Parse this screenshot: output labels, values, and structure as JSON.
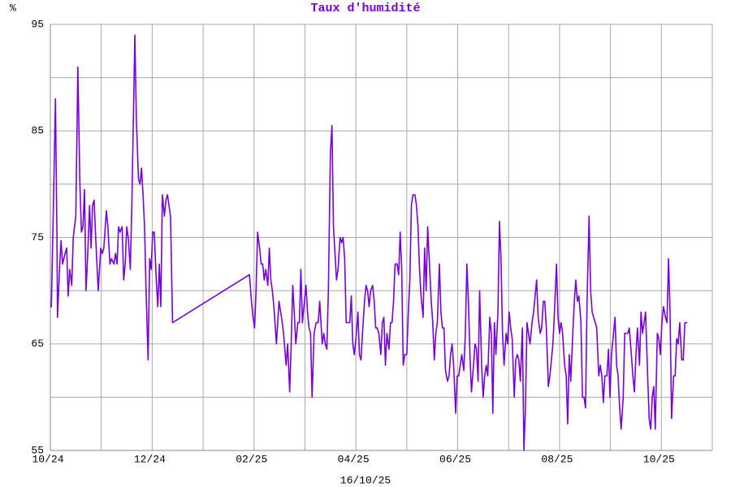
{
  "chart_data": {
    "type": "line",
    "title": "Taux d'humidité",
    "ylabel": "%",
    "xlabel": "16/10/25",
    "color": "#7b00e0",
    "grid": true,
    "xlim": [
      0,
      13
    ],
    "ylim": [
      55,
      95
    ],
    "xticks": [
      {
        "value": 0,
        "label": "10/24"
      },
      {
        "value": 2,
        "label": "12/24"
      },
      {
        "value": 4,
        "label": "02/25"
      },
      {
        "value": 6,
        "label": "04/25"
      },
      {
        "value": 8,
        "label": "06/25"
      },
      {
        "value": 10,
        "label": "08/25"
      },
      {
        "value": 12,
        "label": "10/25"
      }
    ],
    "xminor": [
      1,
      3,
      5,
      7,
      9,
      11,
      13
    ],
    "yticks": [
      55,
      65,
      75,
      85,
      95
    ],
    "yminor": [
      60,
      70,
      80,
      90
    ],
    "x": [
      0,
      0.02,
      0.06,
      0.1,
      0.13,
      0.14,
      0.18,
      0.21,
      0.24,
      0.29,
      0.32,
      0.35,
      0.38,
      0.42,
      0.45,
      0.5,
      0.54,
      0.58,
      0.61,
      0.64,
      0.67,
      0.7,
      0.73,
      0.77,
      0.8,
      0.83,
      0.86,
      0.89,
      0.94,
      0.99,
      1.02,
      1.05,
      1.1,
      1.13,
      1.17,
      1.2,
      1.25,
      1.28,
      1.31,
      1.34,
      1.37,
      1.41,
      1.44,
      1.47,
      1.5,
      1.53,
      1.57,
      1.6,
      1.66,
      1.69,
      1.73,
      1.76,
      1.79,
      1.82,
      1.85,
      1.88,
      1.92,
      1.95,
      1.98,
      2.01,
      2.04,
      2.08,
      2.11,
      2.14,
      2.17,
      2.2,
      2.24,
      2.27,
      2.3,
      2.33,
      2.36,
      2.4,
      3.91,
      3.95,
      3.98,
      4.01,
      4.04,
      4.07,
      4.11,
      4.14,
      4.17,
      4.2,
      4.23,
      4.27,
      4.3,
      4.33,
      4.36,
      4.39,
      4.44,
      4.49,
      4.54,
      4.58,
      4.63,
      4.66,
      4.7,
      4.73,
      4.76,
      4.79,
      4.82,
      4.86,
      4.89,
      4.92,
      4.95,
      4.98,
      5.02,
      5.05,
      5.08,
      5.11,
      5.14,
      5.18,
      5.22,
      5.26,
      5.29,
      5.34,
      5.37,
      5.4,
      5.43,
      5.46,
      5.5,
      5.53,
      5.56,
      5.59,
      5.62,
      5.65,
      5.69,
      5.72,
      5.75,
      5.78,
      5.81,
      5.85,
      5.88,
      5.91,
      5.94,
      5.97,
      6.01,
      6.04,
      6.07,
      6.1,
      6.13,
      6.17,
      6.2,
      6.23,
      6.26,
      6.29,
      6.33,
      6.36,
      6.39,
      6.42,
      6.45,
      6.49,
      6.52,
      6.55,
      6.58,
      6.61,
      6.65,
      6.68,
      6.71,
      6.74,
      6.77,
      6.81,
      6.84,
      6.87,
      6.9,
      6.93,
      6.96,
      7.0,
      7.03,
      7.06,
      7.09,
      7.12,
      7.16,
      7.19,
      7.22,
      7.25,
      7.28,
      7.32,
      7.35,
      7.38,
      7.41,
      7.44,
      7.48,
      7.51,
      7.54,
      7.57,
      7.6,
      7.64,
      7.67,
      7.7,
      7.73,
      7.76,
      7.8,
      7.83,
      7.86,
      7.89,
      7.92,
      7.96,
      7.99,
      8.02,
      8.05,
      8.08,
      8.12,
      8.15,
      8.18,
      8.21,
      8.24,
      8.27,
      8.31,
      8.34,
      8.37,
      8.4,
      8.43,
      8.47,
      8.5,
      8.53,
      8.56,
      8.59,
      8.63,
      8.66,
      8.69,
      8.72,
      8.75,
      8.79,
      8.82,
      8.85,
      8.88,
      8.91,
      8.95,
      8.98,
      9.01,
      9.04,
      9.07,
      9.11,
      9.14,
      9.17,
      9.2,
      9.23,
      9.27,
      9.3,
      9.33,
      9.36,
      9.39,
      9.42,
      9.46,
      9.49,
      9.52,
      9.55,
      9.58,
      9.62,
      9.65,
      9.68,
      9.71,
      9.74,
      9.78,
      9.81,
      9.84,
      9.87,
      9.9,
      9.94,
      9.97,
      10.0,
      10.03,
      10.06,
      10.1,
      10.13,
      10.16,
      10.19,
      10.22,
      10.26,
      10.29,
      10.32,
      10.35,
      10.38,
      10.42,
      10.45,
      10.48,
      10.51,
      10.54,
      10.58,
      10.61,
      10.64,
      10.67,
      10.7,
      10.73,
      10.77,
      10.8,
      10.83,
      10.86,
      10.89,
      10.93,
      10.96,
      10.99,
      11.02,
      11.05,
      11.09,
      11.12,
      11.15,
      11.18,
      11.21,
      11.25,
      11.28,
      11.31,
      11.34,
      11.37,
      11.41,
      11.44,
      11.47,
      11.5,
      11.53,
      11.57,
      11.6,
      11.63,
      11.66,
      11.69,
      11.73,
      11.76,
      11.79,
      11.82,
      11.85,
      11.88,
      11.92,
      11.95,
      11.98,
      12.01,
      12.04,
      12.08,
      12.11,
      12.14,
      12.17,
      12.2,
      12.24,
      12.27,
      12.3,
      12.33,
      12.36,
      12.4,
      12.43,
      12.46,
      12.51
    ],
    "values": [
      68.5,
      68.5,
      78,
      88,
      75,
      67.5,
      72,
      74.7,
      72.5,
      73.5,
      74,
      69.5,
      72,
      70.5,
      75,
      77,
      91,
      80,
      75.5,
      76,
      79.5,
      70,
      73,
      78,
      74,
      78,
      78.5,
      75,
      70,
      74,
      73.5,
      74,
      77.5,
      76,
      72.5,
      73,
      72.5,
      73.5,
      72.5,
      76,
      75.5,
      76,
      71,
      72.5,
      76,
      75,
      72,
      78,
      94,
      86,
      80.5,
      80,
      81.5,
      79,
      76,
      70,
      63.5,
      73,
      72,
      75.5,
      75.5,
      71,
      68.5,
      72.5,
      68.5,
      79,
      77,
      78.5,
      79,
      78,
      77,
      67,
      71.5,
      69,
      67.5,
      66.5,
      70,
      75.5,
      74,
      72.5,
      72.5,
      71,
      72,
      70.5,
      74,
      71,
      70,
      68.5,
      65,
      69,
      67.5,
      66,
      63,
      65,
      60.5,
      65,
      70.5,
      68,
      65,
      67,
      67,
      72,
      67,
      68.5,
      70.5,
      68,
      66.5,
      66,
      60,
      66,
      67,
      67,
      69,
      65,
      66,
      65,
      64.5,
      70,
      83,
      85.5,
      76,
      73.5,
      71,
      72,
      75,
      74.5,
      75,
      73,
      67,
      67,
      67,
      69.5,
      65,
      64,
      66,
      68,
      64,
      63.5,
      66,
      69,
      70.5,
      70,
      68.5,
      70,
      70.5,
      69,
      66.5,
      66.5,
      66,
      64,
      67,
      67.5,
      63,
      66,
      64.5,
      67,
      67,
      69,
      72.5,
      72.5,
      71.5,
      75.5,
      72,
      63,
      64,
      64,
      68,
      71,
      78,
      79,
      79,
      78,
      76,
      72,
      69.5,
      67.5,
      74,
      70,
      76,
      73,
      69,
      67,
      63.5,
      66,
      67,
      72.5,
      68,
      66.5,
      66.5,
      62.5,
      61.5,
      62,
      64,
      65,
      63,
      58.5,
      62,
      62,
      63,
      64,
      62.5,
      66,
      72.5,
      69,
      64,
      60.5,
      63,
      65,
      64.5,
      61.5,
      70,
      63,
      60,
      62,
      63,
      62,
      67.5,
      66,
      58.5,
      67,
      64,
      68,
      76.5,
      73,
      66,
      63,
      66,
      65,
      68,
      66.5,
      65.5,
      60,
      63.5,
      64,
      63.5,
      61.5,
      66.5,
      55,
      59,
      67,
      66,
      65,
      67,
      68,
      69.5,
      71,
      67.5,
      66,
      66.5,
      69,
      69,
      66.5,
      61,
      62,
      63.5,
      65,
      68,
      72.5,
      67.5,
      66,
      67,
      66,
      63,
      62,
      57.5,
      64,
      61.5,
      66,
      69,
      71,
      69,
      69.5,
      67,
      60,
      60,
      59,
      69,
      77,
      70,
      68,
      67.5,
      67,
      66.5,
      62,
      63,
      62,
      59.5,
      62,
      62,
      64.5,
      60,
      64,
      65.5,
      67.5,
      63,
      62,
      59,
      57,
      60,
      66,
      66,
      66,
      66.5,
      64,
      62,
      60.5,
      64,
      66.5,
      63,
      68,
      66,
      67,
      68,
      62,
      58,
      57,
      60,
      61,
      57,
      66,
      65.5,
      64,
      67,
      68.5,
      67.5,
      67,
      73,
      68,
      58,
      62,
      62,
      65.5,
      65,
      67,
      63.5,
      63.5,
      67,
      67
    ]
  }
}
